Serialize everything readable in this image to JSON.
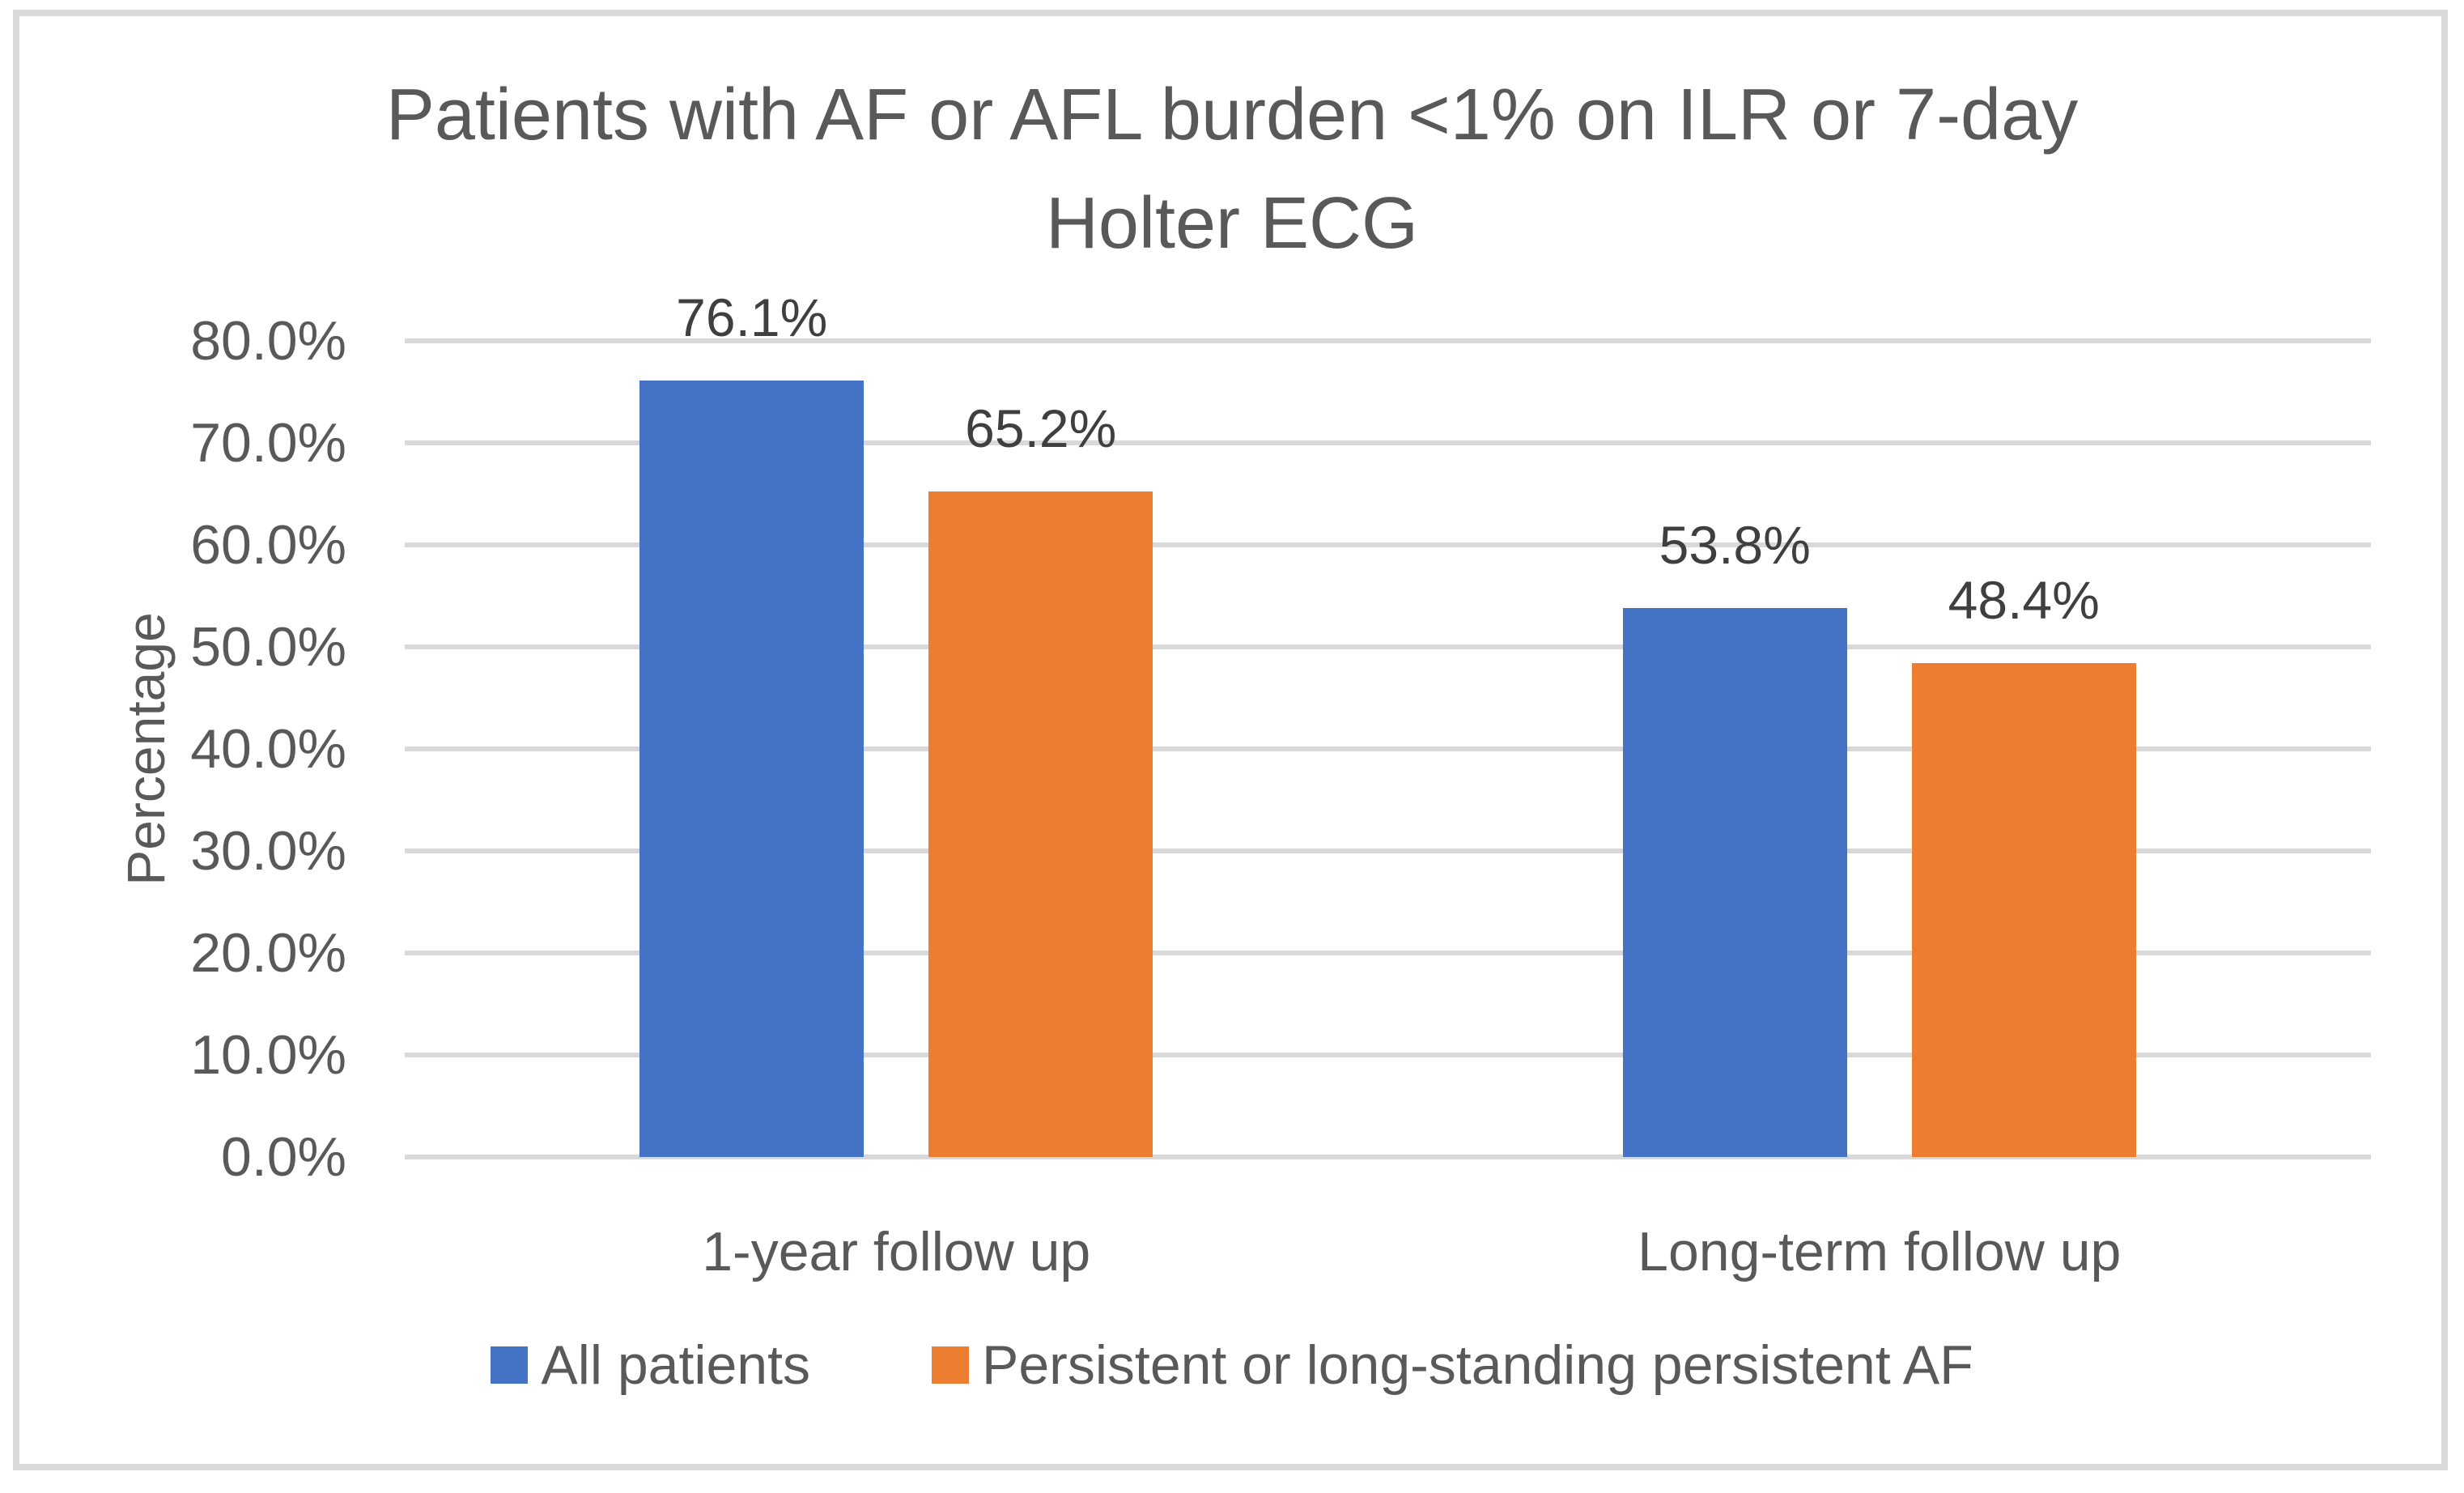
{
  "chart_data": {
    "type": "bar",
    "title": "Patients with AF or AFL burden <1% on ILR or 7-day Holter ECG",
    "title_lines": [
      "Patients with AF or AFL burden <1% on ILR or 7-day",
      "Holter ECG"
    ],
    "ylabel": "Percentage",
    "categories": [
      "1-year follow up",
      "Long-term follow up"
    ],
    "series": [
      {
        "name": "All patients",
        "color": "#4472C4",
        "values": [
          76.1,
          53.8
        ],
        "data_labels": [
          "76.1%",
          "53.8%"
        ]
      },
      {
        "name": "Persistent or long-standing persistent AF",
        "color": "#ED7D31",
        "values": [
          65.2,
          48.4
        ],
        "data_labels": [
          "65.2%",
          "48.4%"
        ]
      }
    ],
    "y_axis": {
      "min": 0,
      "max": 80,
      "step": 10,
      "tick_labels": [
        "0.0%",
        "10.0%",
        "20.0%",
        "30.0%",
        "40.0%",
        "50.0%",
        "60.0%",
        "70.0%",
        "80.0%"
      ]
    },
    "grid": true,
    "legend_position": "bottom",
    "colors": {
      "series_blue": "#4472C4",
      "series_orange": "#ED7D31",
      "gridline": "#D9D9D9",
      "chart_border": "#D9D9D9",
      "axis_text": "#595959",
      "data_label_text": "#3f3f3f"
    }
  }
}
